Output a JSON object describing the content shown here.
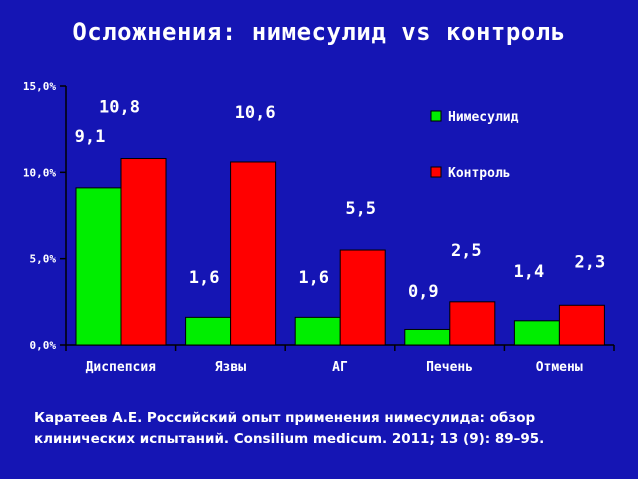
{
  "slide": {
    "title": "Осложнения: нимесулид vs контроль",
    "citation_line1": "Каратеев А.Е. Российский опыт применения нимесулида: обзор",
    "citation_line2": "клинических испытаний. Consilium medicum. 2011; 13 (9): 89–95."
  },
  "colors": {
    "background": "#1515b4",
    "nimesulide": "#00ee00",
    "control": "#ff0000",
    "text": "#ffffff",
    "axis": "#000000"
  },
  "chart_data": {
    "type": "bar",
    "categories": [
      "Диспепсия",
      "Язвы",
      "АГ",
      "Печень",
      "Отмены"
    ],
    "series": [
      {
        "name": "Нимесулид",
        "color": "#00ee00",
        "values": [
          9.1,
          1.6,
          1.6,
          0.9,
          1.4
        ],
        "labels": [
          "9,1",
          "1,6",
          "1,6",
          "0,9",
          "1,4"
        ]
      },
      {
        "name": "Контроль",
        "color": "#ff0000",
        "values": [
          10.8,
          10.6,
          5.5,
          2.5,
          2.3
        ],
        "labels": [
          "10,8",
          "10,6",
          "5,5",
          "2,5",
          "2,3"
        ]
      }
    ],
    "ylim": [
      0,
      15
    ],
    "yticks": [
      0,
      5,
      10,
      15
    ],
    "ytick_labels": [
      "0,0%",
      "5,0%",
      "10,0%",
      "15,0%"
    ],
    "legend_position": "right",
    "grid": false
  }
}
